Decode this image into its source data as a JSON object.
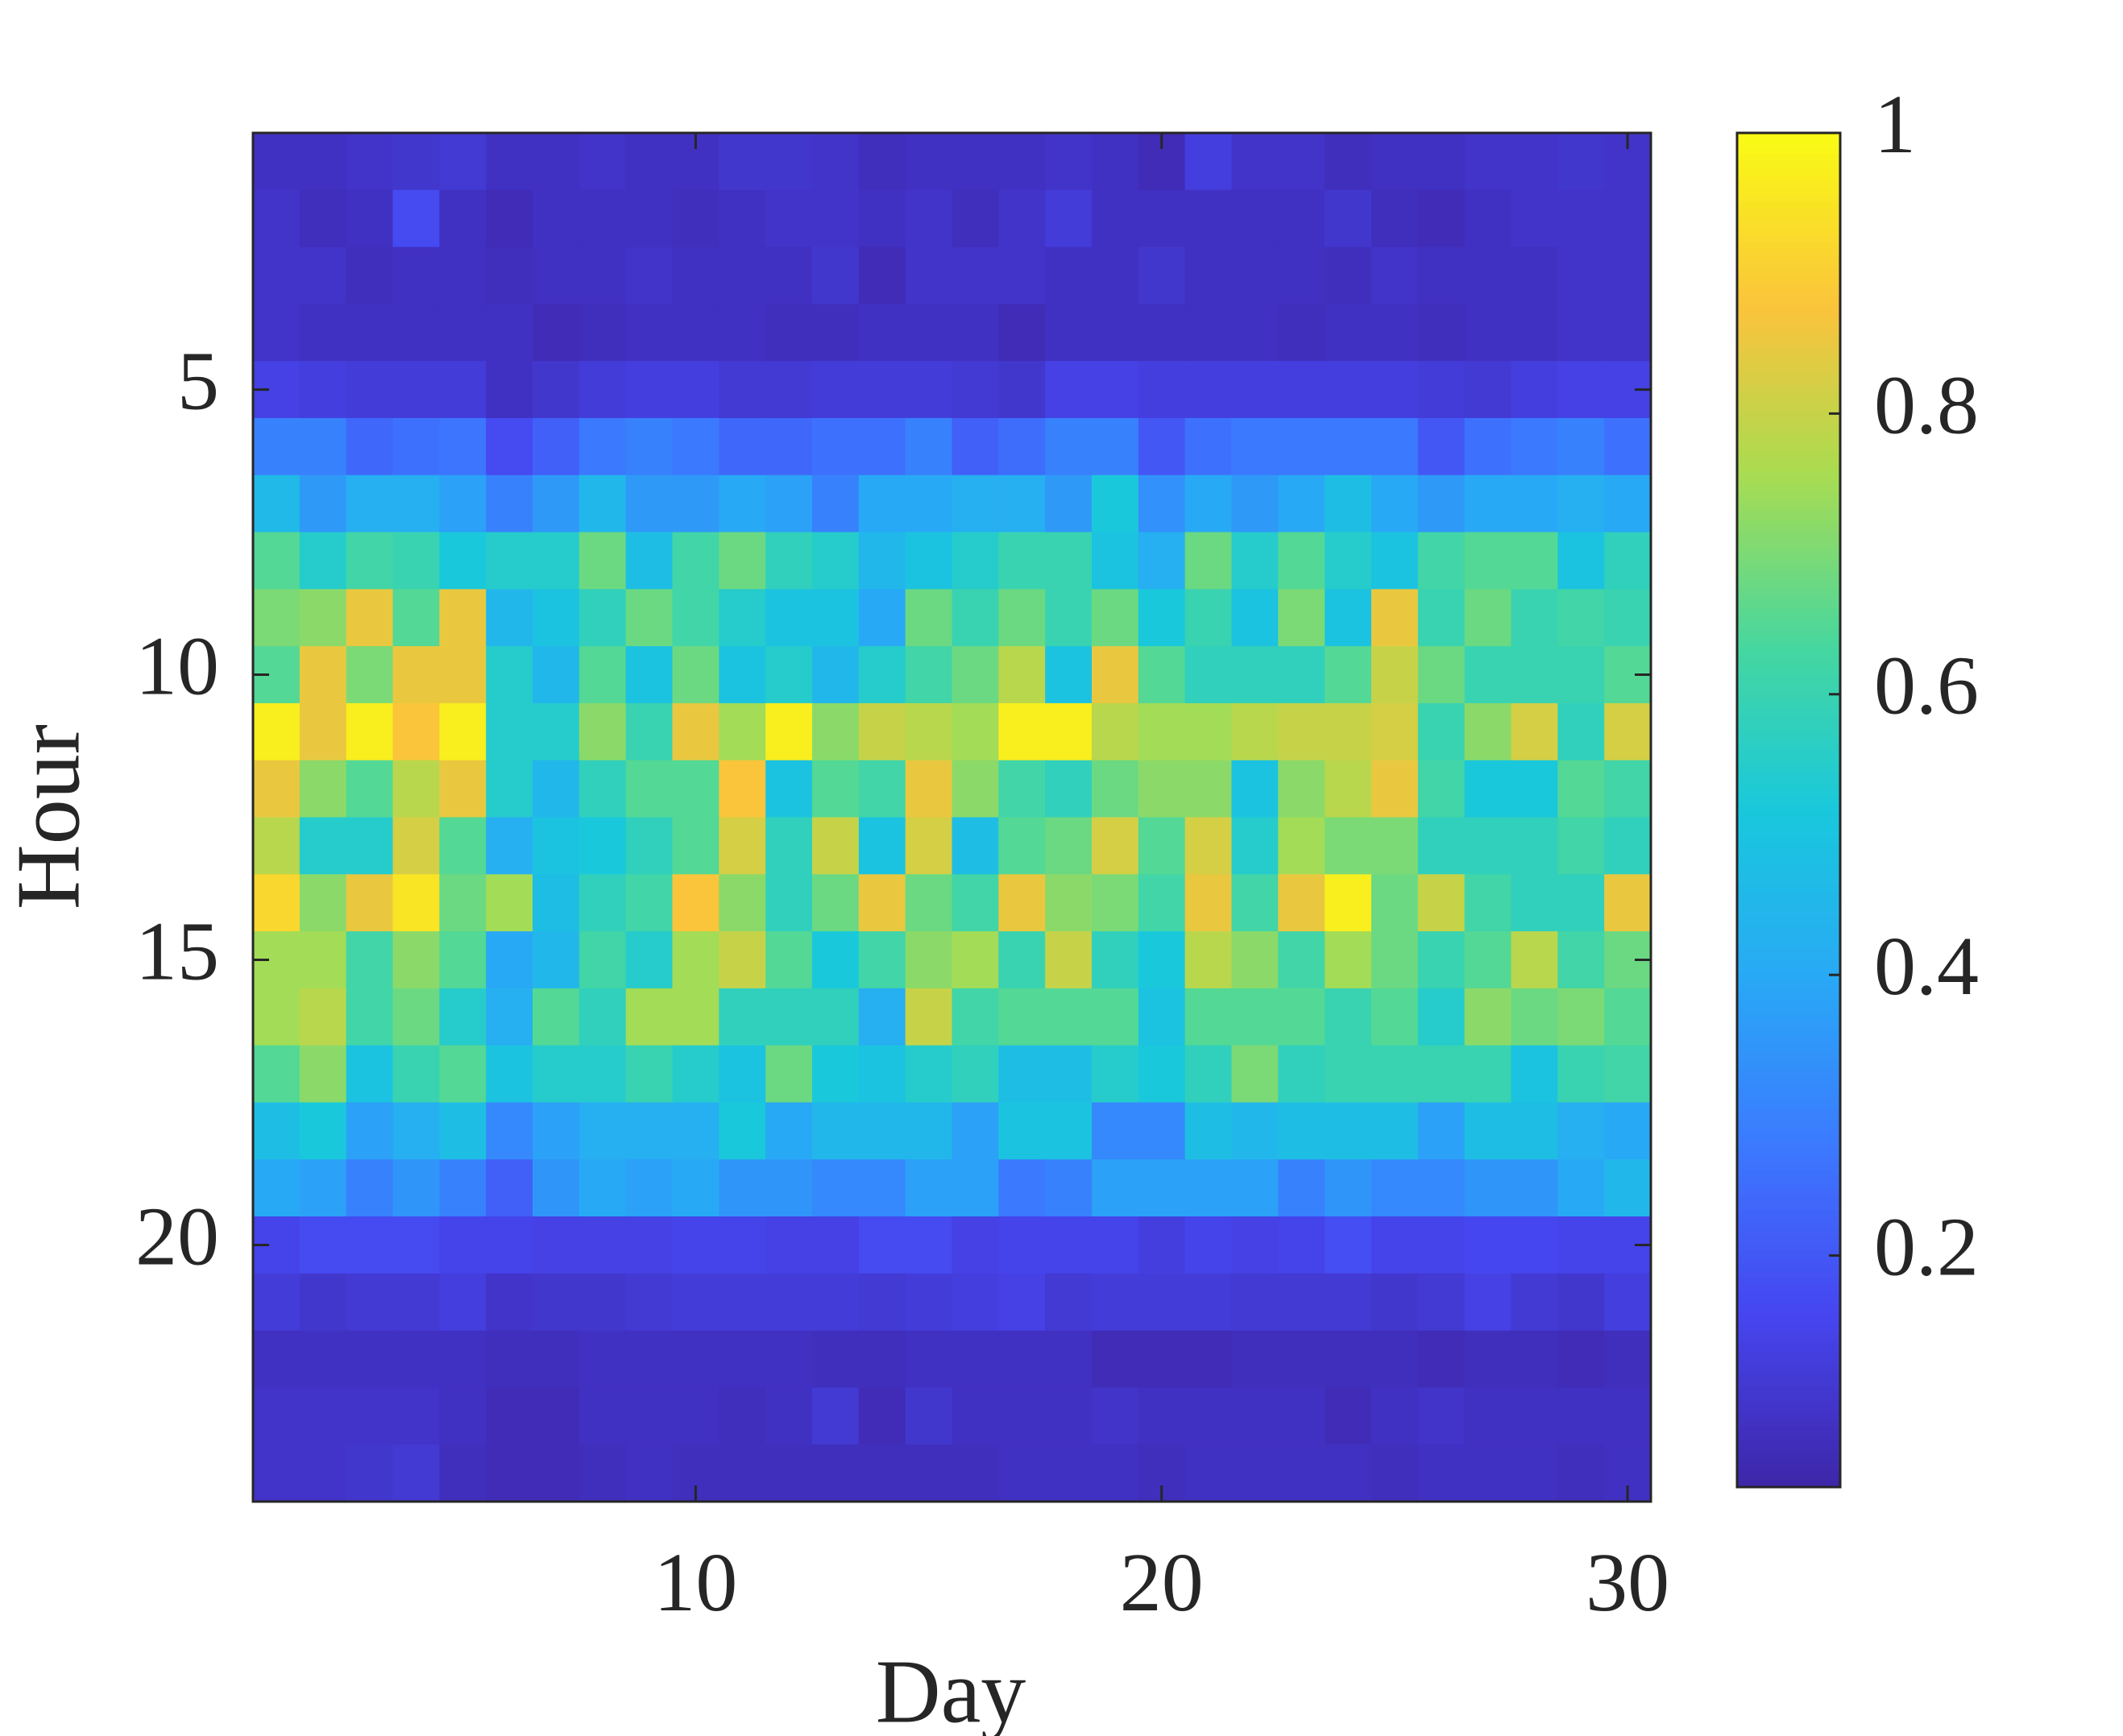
{
  "chart_data": {
    "type": "heatmap",
    "xlabel": "Day",
    "ylabel": "Hour",
    "colormap": "parula",
    "x": [
      1,
      2,
      3,
      4,
      5,
      6,
      7,
      8,
      9,
      10,
      11,
      12,
      13,
      14,
      15,
      16,
      17,
      18,
      19,
      20,
      21,
      22,
      23,
      24,
      25,
      26,
      27,
      28,
      29,
      30
    ],
    "y": [
      1,
      2,
      3,
      4,
      5,
      6,
      7,
      8,
      9,
      10,
      11,
      12,
      13,
      14,
      15,
      16,
      17,
      18,
      19,
      20,
      21,
      22,
      23,
      24
    ],
    "xlim": [
      0.5,
      30.5
    ],
    "ylim": [
      24.5,
      0.5
    ],
    "xticks": [
      10,
      20,
      30
    ],
    "yticks": [
      5,
      10,
      15,
      20
    ],
    "clim": [
      0.035,
      1
    ],
    "cticks": [
      0.2,
      0.4,
      0.6,
      0.8,
      1
    ],
    "z": [
      [
        0.08,
        0.08,
        0.09,
        0.1,
        0.11,
        0.08,
        0.08,
        0.09,
        0.08,
        0.08,
        0.1,
        0.1,
        0.09,
        0.07,
        0.08,
        0.08,
        0.08,
        0.09,
        0.08,
        0.06,
        0.13,
        0.09,
        0.09,
        0.07,
        0.08,
        0.08,
        0.09,
        0.09,
        0.1,
        0.09
      ],
      [
        0.09,
        0.07,
        0.08,
        0.17,
        0.08,
        0.06,
        0.08,
        0.08,
        0.08,
        0.07,
        0.08,
        0.09,
        0.09,
        0.08,
        0.09,
        0.07,
        0.09,
        0.12,
        0.08,
        0.08,
        0.08,
        0.08,
        0.08,
        0.1,
        0.07,
        0.06,
        0.08,
        0.09,
        0.09,
        0.09
      ],
      [
        0.09,
        0.09,
        0.07,
        0.08,
        0.08,
        0.07,
        0.08,
        0.08,
        0.09,
        0.08,
        0.08,
        0.08,
        0.1,
        0.06,
        0.09,
        0.09,
        0.09,
        0.08,
        0.08,
        0.1,
        0.08,
        0.08,
        0.08,
        0.07,
        0.09,
        0.08,
        0.08,
        0.08,
        0.09,
        0.09
      ],
      [
        0.09,
        0.08,
        0.08,
        0.08,
        0.08,
        0.08,
        0.06,
        0.07,
        0.08,
        0.08,
        0.08,
        0.07,
        0.07,
        0.08,
        0.08,
        0.08,
        0.06,
        0.08,
        0.08,
        0.08,
        0.08,
        0.08,
        0.07,
        0.08,
        0.08,
        0.07,
        0.08,
        0.08,
        0.09,
        0.09
      ],
      [
        0.14,
        0.13,
        0.12,
        0.12,
        0.12,
        0.08,
        0.1,
        0.12,
        0.13,
        0.13,
        0.11,
        0.11,
        0.12,
        0.12,
        0.12,
        0.11,
        0.1,
        0.14,
        0.14,
        0.13,
        0.13,
        0.13,
        0.13,
        0.13,
        0.13,
        0.12,
        0.11,
        0.13,
        0.14,
        0.14
      ],
      [
        0.3,
        0.3,
        0.24,
        0.26,
        0.27,
        0.17,
        0.22,
        0.28,
        0.3,
        0.28,
        0.24,
        0.24,
        0.26,
        0.26,
        0.3,
        0.22,
        0.25,
        0.3,
        0.3,
        0.2,
        0.26,
        0.28,
        0.28,
        0.28,
        0.28,
        0.2,
        0.26,
        0.28,
        0.3,
        0.26
      ],
      [
        0.46,
        0.36,
        0.42,
        0.42,
        0.38,
        0.3,
        0.36,
        0.45,
        0.36,
        0.36,
        0.4,
        0.38,
        0.3,
        0.4,
        0.4,
        0.42,
        0.42,
        0.36,
        0.52,
        0.34,
        0.4,
        0.36,
        0.4,
        0.48,
        0.4,
        0.36,
        0.4,
        0.4,
        0.42,
        0.4
      ],
      [
        0.65,
        0.55,
        0.62,
        0.6,
        0.52,
        0.55,
        0.55,
        0.68,
        0.48,
        0.62,
        0.68,
        0.58,
        0.55,
        0.45,
        0.5,
        0.55,
        0.6,
        0.6,
        0.5,
        0.42,
        0.68,
        0.55,
        0.65,
        0.55,
        0.5,
        0.62,
        0.65,
        0.65,
        0.5,
        0.58
      ],
      [
        0.7,
        0.72,
        0.85,
        0.65,
        0.85,
        0.45,
        0.5,
        0.58,
        0.68,
        0.62,
        0.55,
        0.5,
        0.5,
        0.4,
        0.68,
        0.6,
        0.68,
        0.6,
        0.68,
        0.52,
        0.6,
        0.5,
        0.7,
        0.5,
        0.85,
        0.6,
        0.68,
        0.6,
        0.62,
        0.6
      ],
      [
        0.65,
        0.85,
        0.7,
        0.85,
        0.85,
        0.55,
        0.45,
        0.65,
        0.5,
        0.68,
        0.5,
        0.55,
        0.45,
        0.55,
        0.62,
        0.68,
        0.78,
        0.5,
        0.85,
        0.65,
        0.58,
        0.58,
        0.58,
        0.65,
        0.8,
        0.68,
        0.6,
        0.6,
        0.6,
        0.65
      ],
      [
        0.97,
        0.85,
        0.97,
        0.88,
        0.97,
        0.55,
        0.55,
        0.72,
        0.6,
        0.85,
        0.75,
        0.97,
        0.72,
        0.8,
        0.78,
        0.75,
        0.97,
        0.97,
        0.78,
        0.75,
        0.75,
        0.78,
        0.8,
        0.8,
        0.82,
        0.6,
        0.72,
        0.82,
        0.58,
        0.82
      ],
      [
        0.85,
        0.72,
        0.65,
        0.78,
        0.85,
        0.55,
        0.45,
        0.58,
        0.65,
        0.65,
        0.88,
        0.5,
        0.65,
        0.62,
        0.85,
        0.72,
        0.62,
        0.58,
        0.68,
        0.72,
        0.72,
        0.5,
        0.72,
        0.78,
        0.85,
        0.62,
        0.52,
        0.52,
        0.65,
        0.62
      ],
      [
        0.78,
        0.55,
        0.55,
        0.82,
        0.65,
        0.42,
        0.5,
        0.52,
        0.58,
        0.65,
        0.82,
        0.58,
        0.8,
        0.5,
        0.82,
        0.48,
        0.65,
        0.68,
        0.82,
        0.65,
        0.82,
        0.55,
        0.75,
        0.7,
        0.7,
        0.58,
        0.58,
        0.58,
        0.62,
        0.58
      ],
      [
        0.92,
        0.72,
        0.85,
        0.95,
        0.68,
        0.75,
        0.48,
        0.58,
        0.62,
        0.88,
        0.72,
        0.58,
        0.68,
        0.85,
        0.68,
        0.62,
        0.85,
        0.72,
        0.7,
        0.62,
        0.85,
        0.62,
        0.85,
        0.97,
        0.68,
        0.8,
        0.62,
        0.58,
        0.58,
        0.85
      ],
      [
        0.75,
        0.75,
        0.62,
        0.72,
        0.65,
        0.4,
        0.45,
        0.62,
        0.55,
        0.75,
        0.8,
        0.65,
        0.52,
        0.62,
        0.72,
        0.75,
        0.6,
        0.8,
        0.58,
        0.52,
        0.78,
        0.72,
        0.62,
        0.75,
        0.68,
        0.6,
        0.65,
        0.78,
        0.62,
        0.68
      ],
      [
        0.75,
        0.78,
        0.62,
        0.68,
        0.55,
        0.42,
        0.65,
        0.58,
        0.75,
        0.75,
        0.58,
        0.58,
        0.58,
        0.42,
        0.8,
        0.62,
        0.65,
        0.65,
        0.65,
        0.5,
        0.65,
        0.65,
        0.65,
        0.6,
        0.65,
        0.55,
        0.72,
        0.68,
        0.7,
        0.65
      ],
      [
        0.65,
        0.72,
        0.5,
        0.6,
        0.65,
        0.5,
        0.55,
        0.55,
        0.6,
        0.55,
        0.5,
        0.68,
        0.52,
        0.5,
        0.55,
        0.58,
        0.48,
        0.48,
        0.55,
        0.52,
        0.58,
        0.7,
        0.58,
        0.6,
        0.6,
        0.6,
        0.6,
        0.5,
        0.6,
        0.62
      ],
      [
        0.48,
        0.52,
        0.38,
        0.42,
        0.48,
        0.32,
        0.38,
        0.42,
        0.42,
        0.42,
        0.52,
        0.4,
        0.45,
        0.45,
        0.45,
        0.38,
        0.5,
        0.5,
        0.32,
        0.32,
        0.48,
        0.45,
        0.48,
        0.48,
        0.48,
        0.38,
        0.48,
        0.48,
        0.42,
        0.4
      ],
      [
        0.4,
        0.38,
        0.3,
        0.35,
        0.3,
        0.22,
        0.35,
        0.4,
        0.38,
        0.4,
        0.35,
        0.35,
        0.32,
        0.32,
        0.38,
        0.38,
        0.28,
        0.3,
        0.38,
        0.38,
        0.38,
        0.38,
        0.3,
        0.35,
        0.32,
        0.32,
        0.35,
        0.35,
        0.4,
        0.45
      ],
      [
        0.15,
        0.17,
        0.17,
        0.17,
        0.15,
        0.15,
        0.14,
        0.14,
        0.14,
        0.15,
        0.15,
        0.14,
        0.14,
        0.17,
        0.17,
        0.14,
        0.15,
        0.15,
        0.15,
        0.13,
        0.15,
        0.14,
        0.15,
        0.18,
        0.15,
        0.15,
        0.16,
        0.16,
        0.15,
        0.15
      ],
      [
        0.12,
        0.1,
        0.11,
        0.11,
        0.13,
        0.09,
        0.1,
        0.1,
        0.11,
        0.12,
        0.12,
        0.12,
        0.12,
        0.11,
        0.12,
        0.13,
        0.14,
        0.11,
        0.12,
        0.12,
        0.12,
        0.11,
        0.11,
        0.11,
        0.1,
        0.11,
        0.14,
        0.11,
        0.1,
        0.13
      ],
      [
        0.08,
        0.08,
        0.08,
        0.08,
        0.08,
        0.07,
        0.07,
        0.08,
        0.08,
        0.08,
        0.08,
        0.08,
        0.07,
        0.07,
        0.08,
        0.08,
        0.08,
        0.08,
        0.06,
        0.06,
        0.06,
        0.07,
        0.07,
        0.07,
        0.07,
        0.06,
        0.07,
        0.07,
        0.06,
        0.07
      ],
      [
        0.09,
        0.09,
        0.09,
        0.09,
        0.08,
        0.06,
        0.06,
        0.08,
        0.08,
        0.08,
        0.07,
        0.08,
        0.11,
        0.06,
        0.1,
        0.08,
        0.08,
        0.08,
        0.09,
        0.08,
        0.08,
        0.08,
        0.08,
        0.06,
        0.08,
        0.09,
        0.08,
        0.08,
        0.08,
        0.08
      ],
      [
        0.09,
        0.09,
        0.1,
        0.11,
        0.07,
        0.06,
        0.06,
        0.07,
        0.08,
        0.07,
        0.07,
        0.07,
        0.07,
        0.07,
        0.07,
        0.07,
        0.08,
        0.08,
        0.08,
        0.07,
        0.08,
        0.08,
        0.08,
        0.08,
        0.07,
        0.08,
        0.08,
        0.08,
        0.07,
        0.08
      ]
    ]
  }
}
